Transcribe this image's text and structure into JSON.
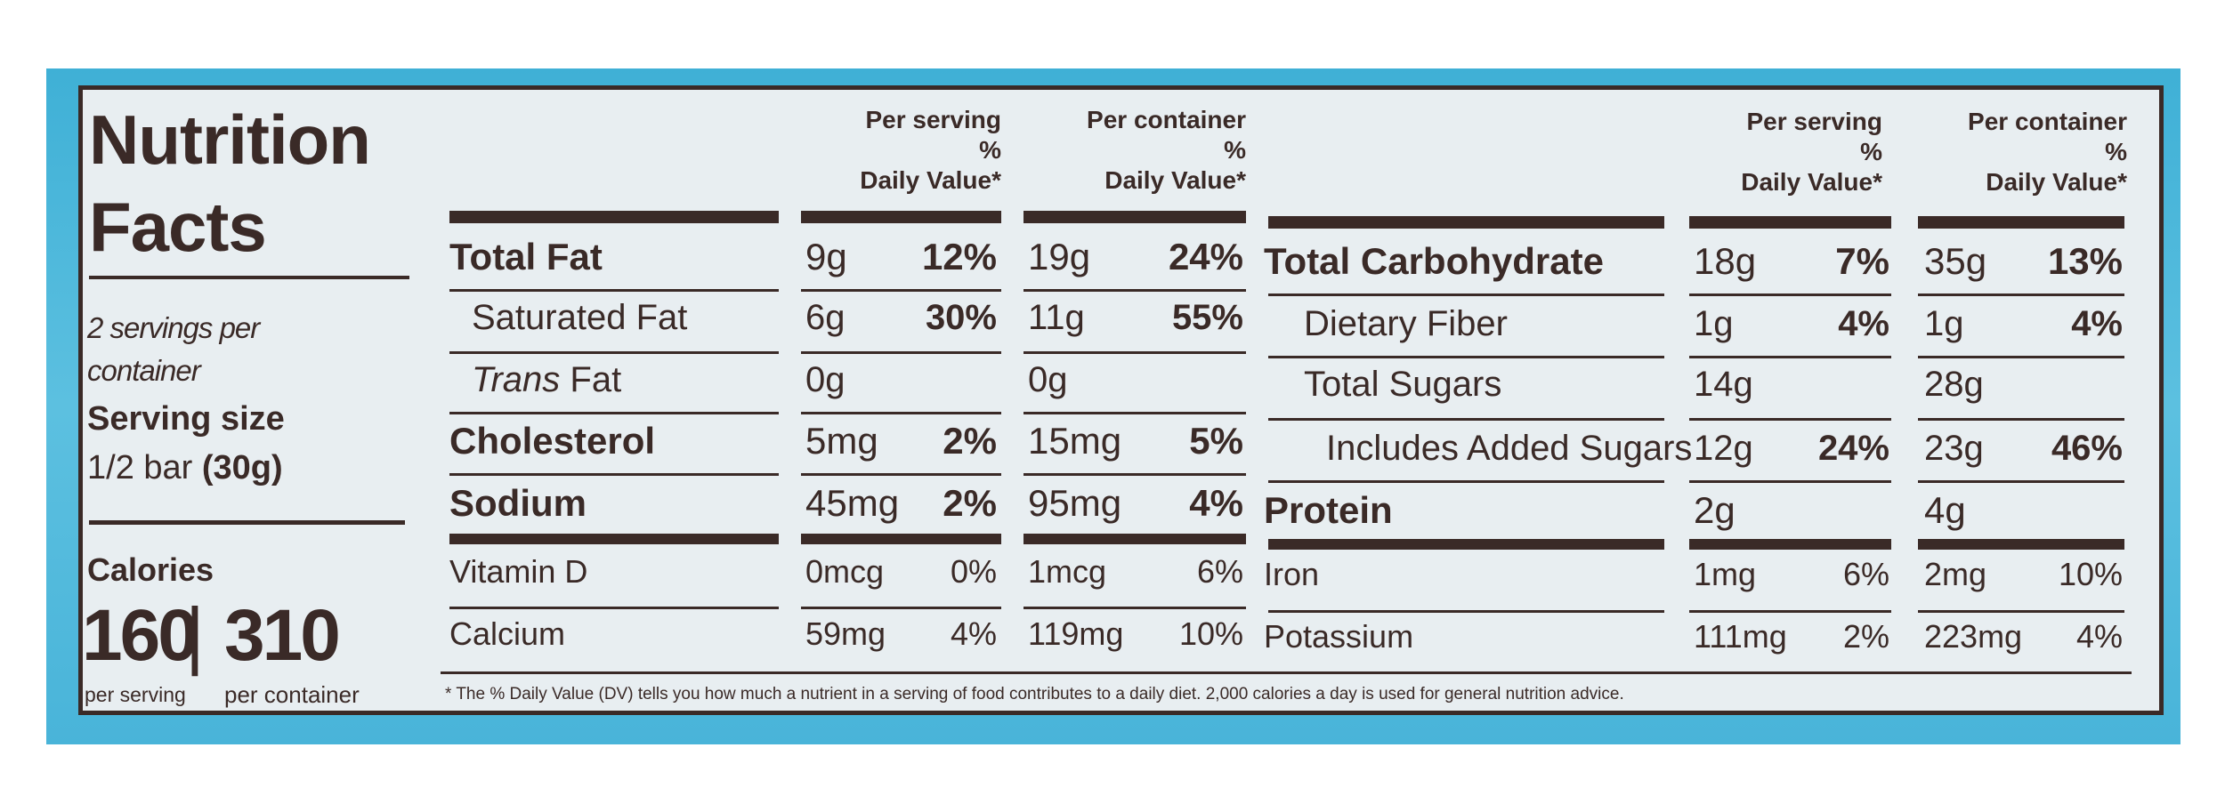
{
  "label": {
    "title_line1": "Nutrition",
    "title_line2": "Facts",
    "servings_line1": "2 servings per",
    "servings_line2": "container",
    "serving_size_label": "Serving size",
    "serving_size_value_prefix": "1/2 bar ",
    "serving_size_value_grams": "(30g)",
    "calories_label": "Calories",
    "calories_per_serving": "160",
    "calories_divider": "|",
    "calories_per_container": "310",
    "per_serving_caption": "per serving",
    "per_container_caption": "per container"
  },
  "headers": {
    "per_serving_line1": "Per serving",
    "per_container_line1": "Per container",
    "percent": "%",
    "daily_value": "Daily Value*"
  },
  "left_table": [
    {
      "name": "Total Fat",
      "serv_amt": "9g",
      "serv_dv": "12%",
      "cont_amt": "19g",
      "cont_dv": "24%"
    },
    {
      "name": "Saturated Fat",
      "serv_amt": "6g",
      "serv_dv": "30%",
      "cont_amt": "11g",
      "cont_dv": "55%"
    },
    {
      "name_italic": "Trans",
      "name": " Fat",
      "serv_amt": "0g",
      "serv_dv": "",
      "cont_amt": "0g",
      "cont_dv": ""
    },
    {
      "name": "Cholesterol",
      "serv_amt": "5mg",
      "serv_dv": "2%",
      "cont_amt": "15mg",
      "cont_dv": "5%"
    },
    {
      "name": "Sodium",
      "serv_amt": "45mg",
      "serv_dv": "2%",
      "cont_amt": "95mg",
      "cont_dv": "4%"
    },
    {
      "name": "Vitamin D",
      "serv_amt": "0mcg",
      "serv_dv": "0%",
      "cont_amt": "1mcg",
      "cont_dv": "6%"
    },
    {
      "name": "Calcium",
      "serv_amt": "59mg",
      "serv_dv": "4%",
      "cont_amt": "119mg",
      "cont_dv": "10%"
    }
  ],
  "right_table": [
    {
      "name": "Total Carbohydrate",
      "serv_amt": "18g",
      "serv_dv": "7%",
      "cont_amt": "35g",
      "cont_dv": "13%"
    },
    {
      "name": "Dietary Fiber",
      "serv_amt": "1g",
      "serv_dv": "4%",
      "cont_amt": "1g",
      "cont_dv": "4%"
    },
    {
      "name": "Total Sugars",
      "serv_amt": "14g",
      "serv_dv": "",
      "cont_amt": "28g",
      "cont_dv": ""
    },
    {
      "name": "Includes Added Sugars",
      "serv_amt": "12g",
      "serv_dv": "24%",
      "cont_amt": "23g",
      "cont_dv": "46%"
    },
    {
      "name": "Protein",
      "serv_amt": "2g",
      "serv_dv": "",
      "cont_amt": "4g",
      "cont_dv": ""
    },
    {
      "name": "Iron",
      "serv_amt": "1mg",
      "serv_dv": "6%",
      "cont_amt": "2mg",
      "cont_dv": "10%"
    },
    {
      "name": "Potassium",
      "serv_amt": "111mg",
      "serv_dv": "2%",
      "cont_amt": "223mg",
      "cont_dv": "4%"
    }
  ],
  "footnote": "* The % Daily Value (DV) tells you how much a nutrient in a serving of food contributes to a daily diet. 2,000 calories a day is used for general nutrition advice."
}
